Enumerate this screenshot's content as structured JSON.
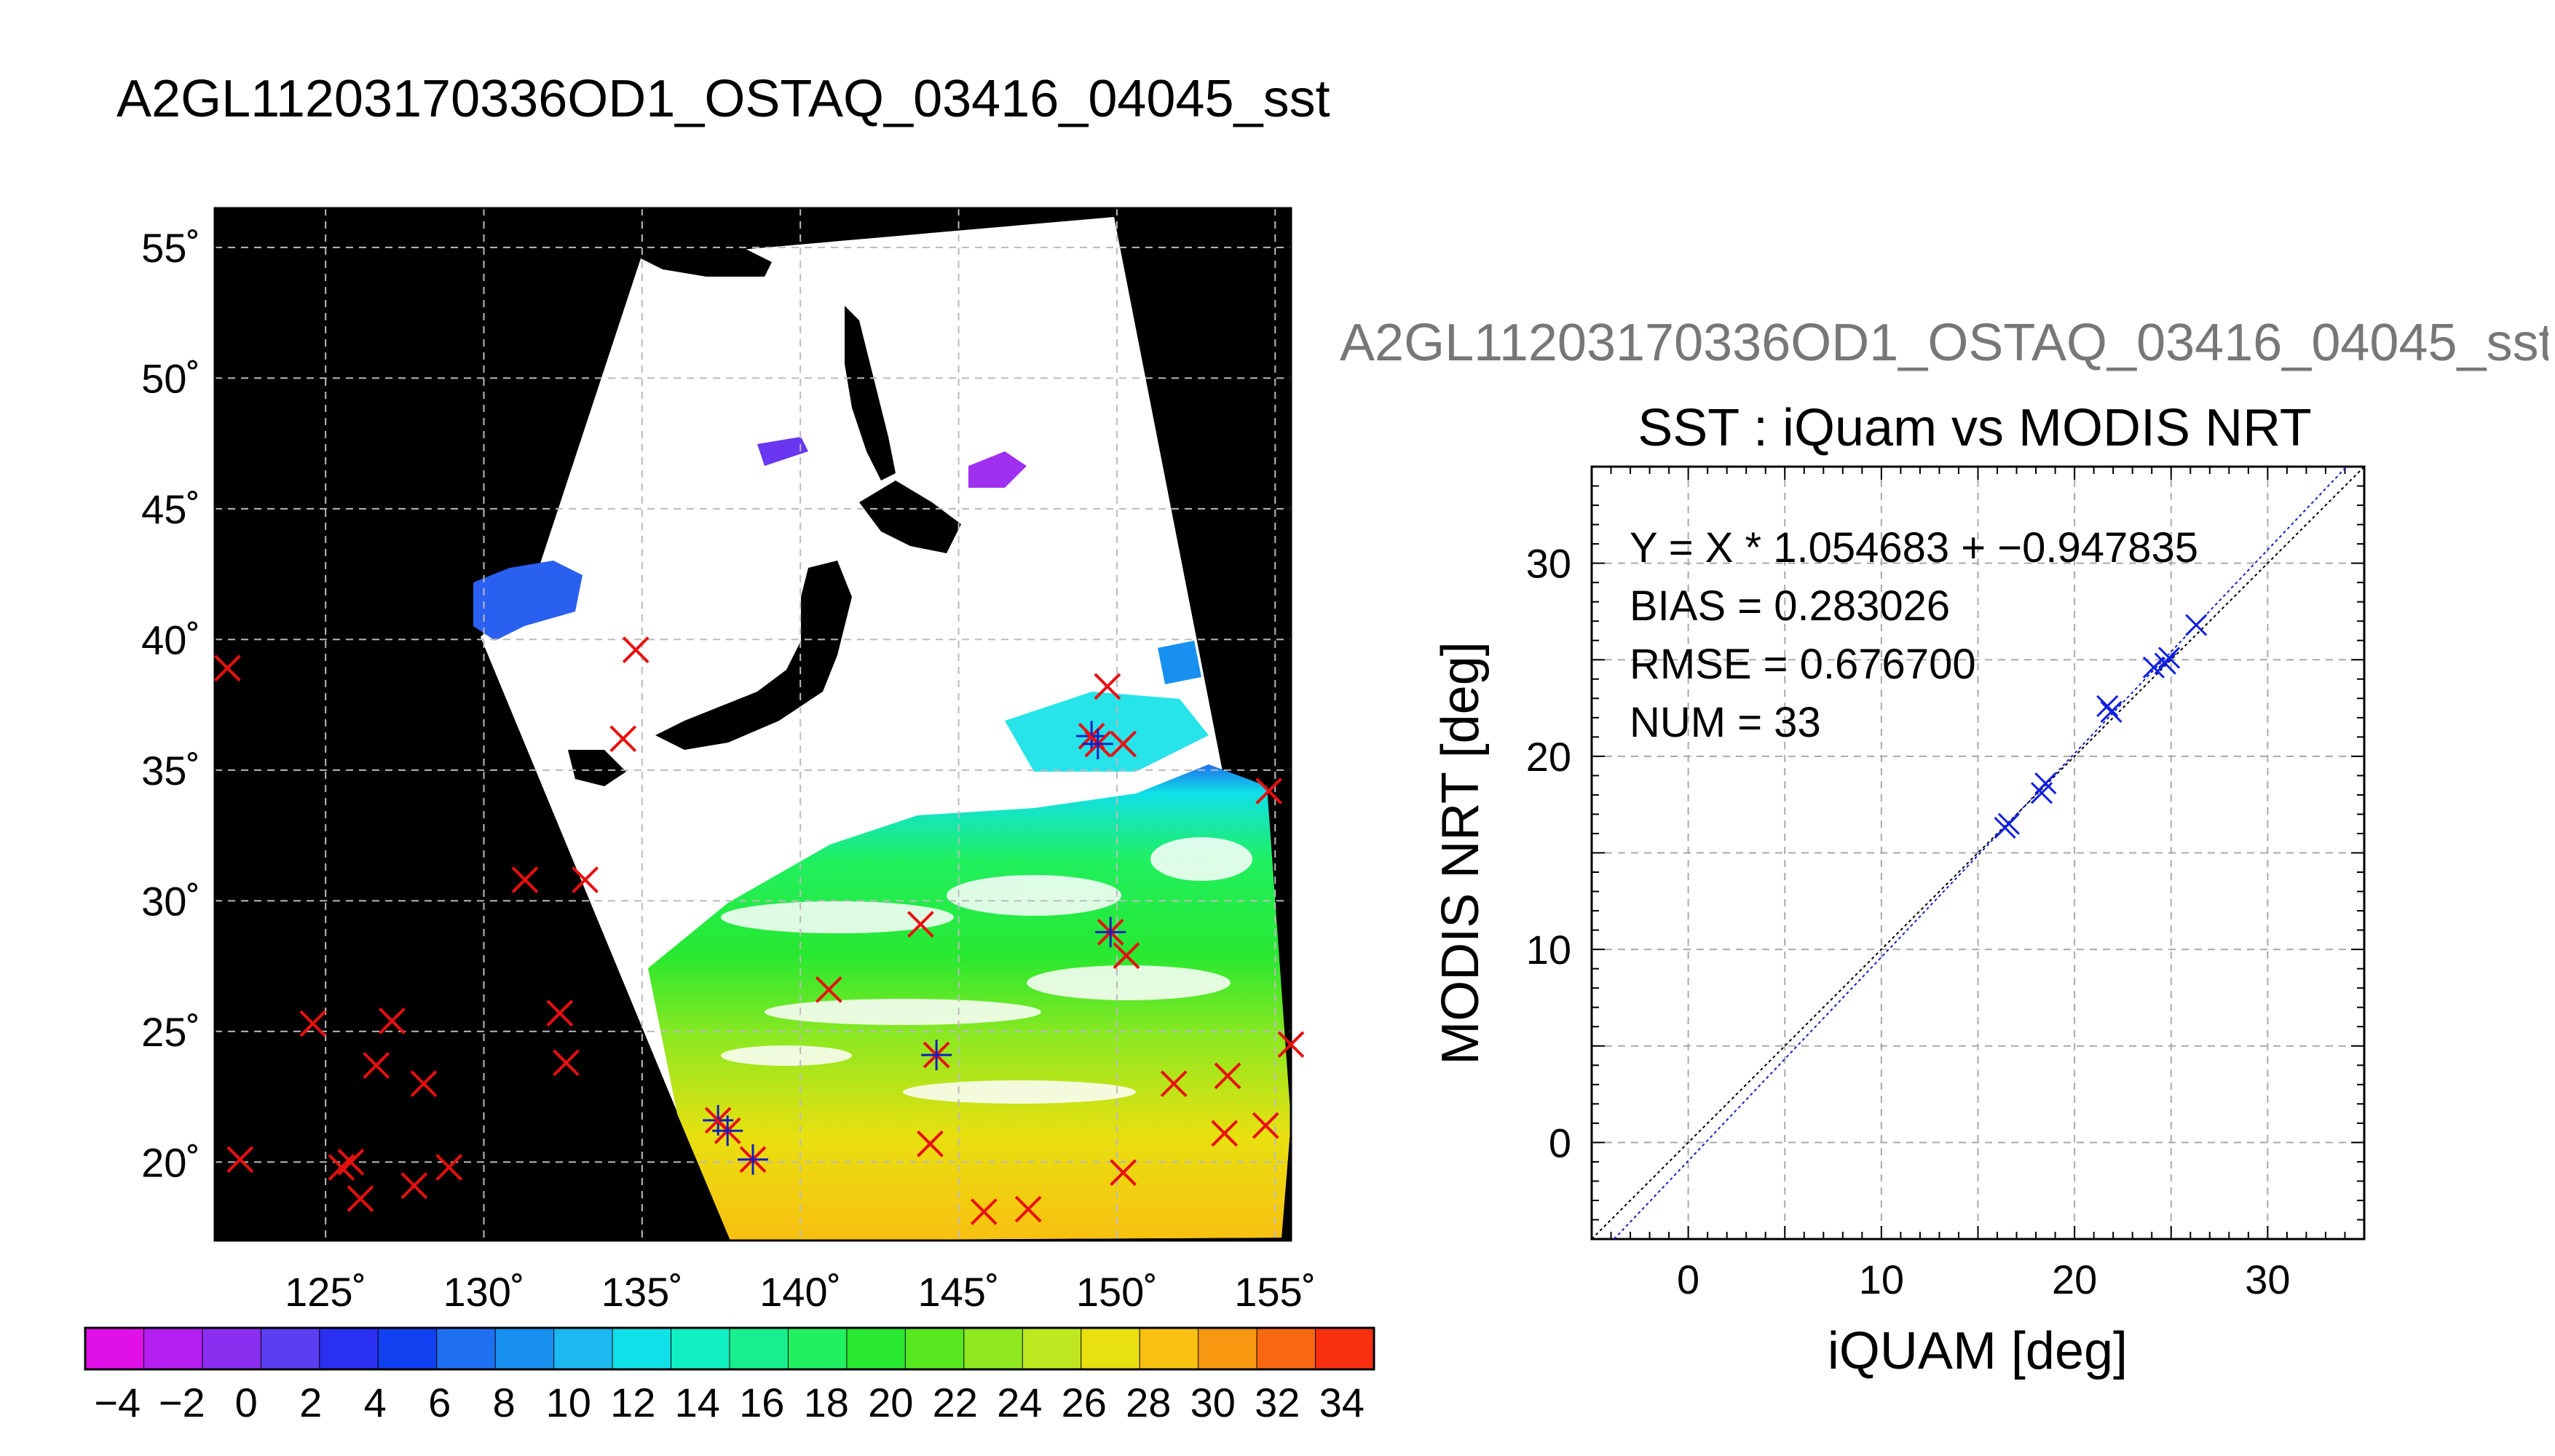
{
  "page": {
    "title": "A2GL11203170336OD1_OSTAQ_03416_04045_sst",
    "scatter_overtitle": "A2GL11203170336OD1_OSTAQ_03416_04045_sst"
  },
  "chart_data": [
    {
      "type": "map",
      "title": "",
      "lon_range": [
        121.5,
        155.5
      ],
      "lat_range": [
        17,
        56.5
      ],
      "lon_ticks": [
        "125˚",
        "130˚",
        "135˚",
        "140˚",
        "145˚",
        "150˚",
        "155˚"
      ],
      "lat_ticks": [
        "55˚",
        "50˚",
        "45˚",
        "40˚",
        "35˚",
        "30˚",
        "25˚",
        "20˚"
      ],
      "grid": true,
      "colorbar": {
        "range": [
          -5,
          35
        ],
        "ticks": [
          "−4",
          "−2",
          "0",
          "2",
          "4",
          "6",
          "8",
          "10",
          "12",
          "14",
          "16",
          "18",
          "20",
          "22",
          "24",
          "26",
          "28",
          "30",
          "32",
          "34"
        ],
        "colors": [
          "#e010e8",
          "#b41ef0",
          "#8a2ef0",
          "#5a3ef0",
          "#2a30f0",
          "#1040f0",
          "#1e70f0",
          "#1890f0",
          "#1cb8f0",
          "#10e0e8",
          "#10f0c0",
          "#18f090",
          "#20f060",
          "#28e830",
          "#58e820",
          "#90e820",
          "#c0e820",
          "#e8e010",
          "#f8c010",
          "#f89810",
          "#f86810",
          "#f83010"
        ]
      },
      "matchups": [
        {
          "lon": 121.9,
          "lat": 38.9
        },
        {
          "lon": 122.3,
          "lat": 20.1
        },
        {
          "lon": 124.6,
          "lat": 25.3
        },
        {
          "lon": 125.5,
          "lat": 19.8
        },
        {
          "lon": 125.8,
          "lat": 20.0
        },
        {
          "lon": 126.1,
          "lat": 18.6
        },
        {
          "lon": 126.6,
          "lat": 23.7
        },
        {
          "lon": 127.1,
          "lat": 25.4
        },
        {
          "lon": 127.8,
          "lat": 19.1
        },
        {
          "lon": 128.1,
          "lat": 23.0
        },
        {
          "lon": 128.9,
          "lat": 19.8
        },
        {
          "lon": 131.3,
          "lat": 30.8
        },
        {
          "lon": 132.4,
          "lat": 25.7
        },
        {
          "lon": 132.6,
          "lat": 23.8
        },
        {
          "lon": 133.2,
          "lat": 30.8
        },
        {
          "lon": 134.4,
          "lat": 36.2
        },
        {
          "lon": 134.8,
          "lat": 39.6
        },
        {
          "lon": 140.9,
          "lat": 26.6
        },
        {
          "lon": 143.8,
          "lat": 29.1
        },
        {
          "lon": 144.1,
          "lat": 20.7
        },
        {
          "lon": 145.8,
          "lat": 18.1
        },
        {
          "lon": 147.2,
          "lat": 18.2
        },
        {
          "lon": 149.7,
          "lat": 38.2
        },
        {
          "lon": 150.2,
          "lat": 36.0
        },
        {
          "lon": 150.2,
          "lat": 19.6
        },
        {
          "lon": 150.3,
          "lat": 27.9
        },
        {
          "lon": 151.8,
          "lat": 23.0
        },
        {
          "lon": 153.4,
          "lat": 21.1
        },
        {
          "lon": 153.5,
          "lat": 23.3
        },
        {
          "lon": 154.7,
          "lat": 21.4
        },
        {
          "lon": 154.8,
          "lat": 34.2
        },
        {
          "lon": 155.5,
          "lat": 24.5
        }
      ],
      "valid_matchups": [
        {
          "lon": 137.4,
          "lat": 21.6
        },
        {
          "lon": 137.7,
          "lat": 21.2
        },
        {
          "lon": 138.5,
          "lat": 20.1
        },
        {
          "lon": 144.3,
          "lat": 24.1
        },
        {
          "lon": 149.2,
          "lat": 36.3
        },
        {
          "lon": 149.4,
          "lat": 36.0
        },
        {
          "lon": 149.8,
          "lat": 28.8
        }
      ]
    },
    {
      "type": "scatter",
      "title": "SST : iQuam vs MODIS NRT",
      "xlabel": "iQUAM [deg]",
      "ylabel": "MODIS NRT [deg]",
      "xlim": [
        -5,
        35
      ],
      "ylim": [
        -5,
        35
      ],
      "xticks": [
        0,
        10,
        20,
        30
      ],
      "yticks": [
        0,
        10,
        20,
        30
      ],
      "grid": true,
      "stats": [
        "Y = X * 1.054683 + −0.947835",
        "BIAS = 0.283026",
        "RMSE = 0.676700",
        "NUM = 33"
      ],
      "fit": {
        "slope": 1.054683,
        "intercept": -0.947835
      },
      "points": [
        {
          "x": 16.4,
          "y": 16.3
        },
        {
          "x": 16.6,
          "y": 16.5
        },
        {
          "x": 18.3,
          "y": 18.1
        },
        {
          "x": 18.5,
          "y": 18.6
        },
        {
          "x": 21.7,
          "y": 22.6
        },
        {
          "x": 21.9,
          "y": 22.3
        },
        {
          "x": 24.1,
          "y": 24.6
        },
        {
          "x": 24.7,
          "y": 24.8
        },
        {
          "x": 24.9,
          "y": 25.1
        },
        {
          "x": 26.3,
          "y": 26.8
        }
      ]
    }
  ]
}
